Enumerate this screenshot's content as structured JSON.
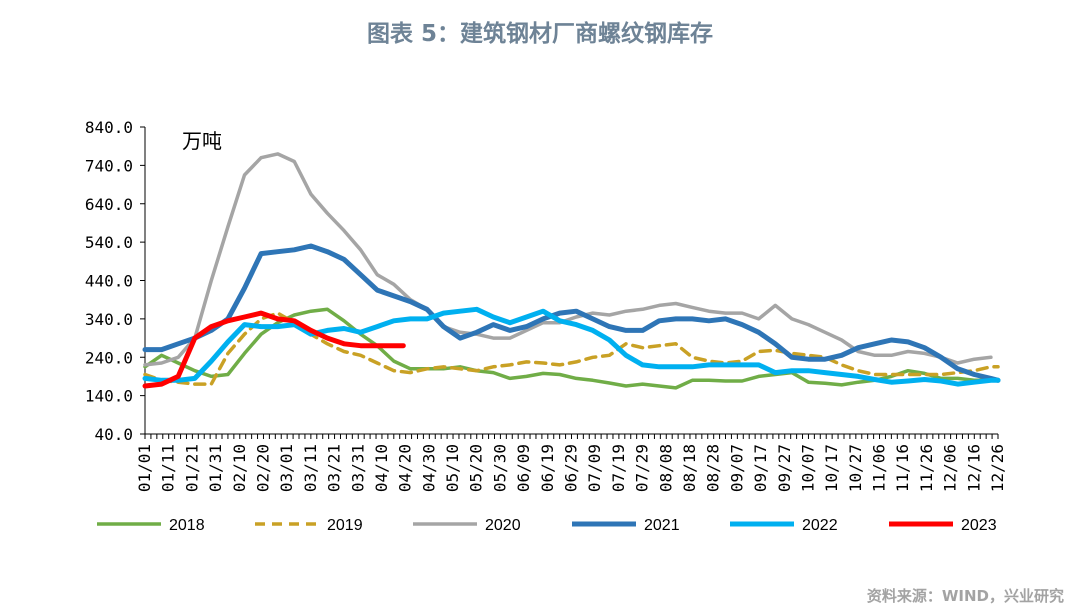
{
  "title": "图表 5：建筑钢材厂商螺纹钢库存",
  "source": "资料来源：WIND，兴业研究",
  "chart_data": {
    "type": "line",
    "unit": "万吨",
    "ylim": [
      40,
      840
    ],
    "yticks": [
      40,
      140,
      240,
      340,
      440,
      540,
      640,
      740,
      840
    ],
    "ytick_labels": [
      "40.0",
      "140.0",
      "240.0",
      "340.0",
      "440.0",
      "540.0",
      "640.0",
      "740.0",
      "840.0"
    ],
    "xlim": [
      0,
      360
    ],
    "x_unit": "day of year (0 = 01/01)",
    "xticks": [
      0,
      10,
      20,
      30,
      40,
      50,
      60,
      70,
      80,
      90,
      100,
      110,
      120,
      130,
      140,
      150,
      160,
      170,
      180,
      190,
      200,
      210,
      220,
      230,
      240,
      250,
      260,
      270,
      280,
      290,
      300,
      310,
      320,
      330,
      340,
      350,
      360
    ],
    "xtick_labels": [
      "01/01",
      "01/11",
      "01/21",
      "01/31",
      "02/10",
      "02/20",
      "03/01",
      "03/11",
      "03/21",
      "03/31",
      "04/10",
      "04/20",
      "04/30",
      "05/10",
      "05/20",
      "05/30",
      "06/09",
      "06/19",
      "06/29",
      "07/09",
      "07/19",
      "07/29",
      "08/08",
      "08/18",
      "08/28",
      "09/07",
      "09/17",
      "09/27",
      "10/07",
      "10/17",
      "10/27",
      "11/06",
      "11/16",
      "11/26",
      "12/06",
      "12/16",
      "12/26"
    ],
    "series": [
      {
        "name": "2018",
        "color": "#70ad47",
        "width": 3.5,
        "dash": "",
        "x": [
          0,
          7,
          14,
          21,
          28,
          35,
          42,
          49,
          56,
          63,
          70,
          77,
          84,
          91,
          98,
          105,
          112,
          119,
          126,
          133,
          140,
          147,
          154,
          161,
          168,
          175,
          182,
          189,
          196,
          203,
          210,
          217,
          224,
          231,
          238,
          245,
          252,
          259,
          266,
          273,
          280,
          287,
          294,
          301,
          308,
          315,
          322,
          329,
          336,
          343,
          350,
          357,
          360
        ],
        "y": [
          215,
          245,
          225,
          205,
          190,
          195,
          250,
          300,
          330,
          350,
          360,
          365,
          335,
          300,
          270,
          230,
          210,
          210,
          210,
          215,
          205,
          200,
          185,
          190,
          198,
          195,
          185,
          180,
          173,
          165,
          170,
          165,
          160,
          180,
          180,
          178,
          178,
          190,
          195,
          200,
          175,
          172,
          168,
          175,
          180,
          190,
          205,
          198,
          185,
          185,
          180,
          180,
          180
        ]
      },
      {
        "name": "2019",
        "color": "#c9a125",
        "width": 3.5,
        "dash": "10,7",
        "x": [
          0,
          7,
          14,
          21,
          28,
          35,
          42,
          49,
          56,
          63,
          70,
          77,
          84,
          91,
          98,
          105,
          112,
          119,
          126,
          133,
          140,
          147,
          154,
          161,
          168,
          175,
          182,
          189,
          196,
          203,
          210,
          217,
          224,
          231,
          238,
          245,
          252,
          259,
          266,
          273,
          280,
          287,
          294,
          301,
          308,
          315,
          322,
          329,
          336,
          343,
          350,
          357,
          360
        ],
        "y": [
          195,
          180,
          175,
          170,
          170,
          250,
          300,
          340,
          355,
          330,
          300,
          275,
          255,
          245,
          225,
          205,
          200,
          210,
          215,
          210,
          205,
          215,
          220,
          228,
          225,
          220,
          228,
          240,
          245,
          275,
          265,
          270,
          275,
          240,
          230,
          225,
          230,
          255,
          258,
          250,
          245,
          240,
          220,
          205,
          195,
          195,
          195,
          195,
          195,
          200,
          205,
          215,
          215
        ]
      },
      {
        "name": "2020",
        "color": "#a5a5a5",
        "width": 3.5,
        "dash": "",
        "x": [
          0,
          7,
          14,
          21,
          28,
          35,
          42,
          49,
          56,
          63,
          70,
          77,
          84,
          91,
          98,
          105,
          112,
          119,
          126,
          133,
          140,
          147,
          154,
          161,
          168,
          175,
          182,
          189,
          196,
          203,
          210,
          217,
          224,
          231,
          238,
          245,
          252,
          259,
          266,
          273,
          280,
          287,
          294,
          301,
          308,
          315,
          322,
          329,
          336,
          343,
          350,
          357
        ],
        "y": [
          220,
          225,
          240,
          290,
          440,
          580,
          715,
          760,
          770,
          750,
          665,
          615,
          570,
          520,
          455,
          430,
          390,
          365,
          320,
          305,
          300,
          290,
          290,
          310,
          330,
          330,
          345,
          355,
          350,
          360,
          365,
          375,
          380,
          370,
          360,
          355,
          355,
          340,
          375,
          340,
          325,
          305,
          285,
          255,
          245,
          245,
          255,
          250,
          240,
          225,
          235,
          240
        ]
      },
      {
        "name": "2021",
        "color": "#2e75b6",
        "width": 5,
        "dash": "",
        "x": [
          0,
          7,
          14,
          21,
          28,
          35,
          42,
          49,
          56,
          63,
          70,
          77,
          84,
          91,
          98,
          105,
          112,
          119,
          126,
          133,
          140,
          147,
          154,
          161,
          168,
          175,
          182,
          189,
          196,
          203,
          210,
          217,
          224,
          231,
          238,
          245,
          252,
          259,
          266,
          273,
          280,
          287,
          294,
          301,
          308,
          315,
          322,
          329,
          336,
          343,
          350,
          357,
          360
        ],
        "y": [
          260,
          260,
          275,
          290,
          310,
          340,
          420,
          510,
          515,
          520,
          530,
          515,
          495,
          455,
          415,
          400,
          385,
          365,
          320,
          290,
          305,
          325,
          310,
          320,
          340,
          355,
          360,
          340,
          320,
          310,
          310,
          335,
          340,
          340,
          335,
          340,
          325,
          305,
          275,
          240,
          235,
          235,
          245,
          265,
          275,
          285,
          280,
          265,
          240,
          210,
          195,
          185,
          180
        ]
      },
      {
        "name": "2022",
        "color": "#00b0f0",
        "width": 5,
        "dash": "",
        "x": [
          0,
          7,
          14,
          21,
          28,
          35,
          42,
          49,
          56,
          63,
          70,
          77,
          84,
          91,
          98,
          105,
          112,
          119,
          126,
          133,
          140,
          147,
          154,
          161,
          168,
          175,
          182,
          189,
          196,
          203,
          210,
          217,
          224,
          231,
          238,
          245,
          252,
          259,
          266,
          273,
          280,
          287,
          294,
          301,
          308,
          315,
          322,
          329,
          336,
          343,
          350,
          357,
          360
        ],
        "y": [
          185,
          180,
          180,
          185,
          230,
          280,
          325,
          320,
          320,
          325,
          300,
          310,
          315,
          305,
          320,
          335,
          340,
          340,
          355,
          360,
          365,
          345,
          330,
          345,
          360,
          335,
          325,
          310,
          285,
          245,
          220,
          215,
          215,
          215,
          220,
          220,
          220,
          220,
          200,
          205,
          205,
          200,
          195,
          190,
          182,
          175,
          178,
          182,
          178,
          170,
          175,
          180,
          180
        ]
      },
      {
        "name": "2023",
        "color": "#ff0000",
        "width": 5,
        "dash": "",
        "x": [
          0,
          7,
          14,
          21,
          28,
          35,
          42,
          49,
          56,
          63,
          70,
          77,
          84,
          91,
          98,
          105,
          109
        ],
        "y": [
          165,
          170,
          190,
          290,
          320,
          335,
          345,
          355,
          340,
          335,
          310,
          290,
          275,
          270,
          270,
          270,
          270
        ]
      }
    ],
    "legend": [
      "2018",
      "2019",
      "2020",
      "2021",
      "2022",
      "2023"
    ],
    "legend_position": "bottom"
  }
}
